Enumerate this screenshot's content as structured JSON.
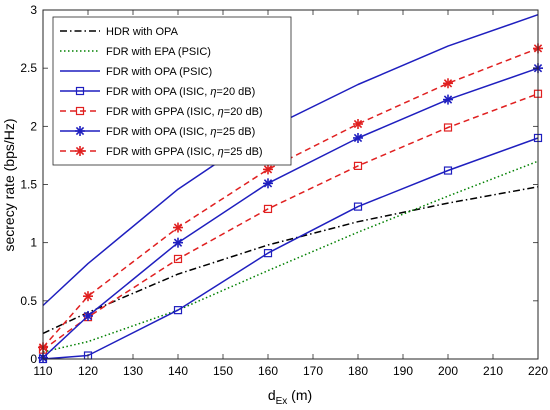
{
  "chart_data": {
    "type": "line",
    "xlabel": "d",
    "xlabel_sub": "Ex",
    "xlabel_unit": " (m)",
    "ylabel": "secrecy rate (bps/Hz)",
    "xlim": [
      110,
      220
    ],
    "ylim": [
      0,
      3
    ],
    "xticks": [
      110,
      120,
      130,
      140,
      150,
      160,
      170,
      180,
      190,
      200,
      210,
      220
    ],
    "yticks": [
      0,
      0.5,
      1,
      1.5,
      2,
      2.5,
      3
    ],
    "grid": false,
    "legend_position": "top-left",
    "x": [
      110,
      120,
      140,
      160,
      180,
      200,
      220
    ],
    "series": [
      {
        "name": "HDR with OPA",
        "legend": [
          "HDR with OPA"
        ],
        "color": "#000000",
        "dash": "dashdot",
        "marker": "none",
        "values": [
          0.22,
          0.4,
          0.73,
          0.98,
          1.18,
          1.34,
          1.48
        ]
      },
      {
        "name": "FDR with EPA (PSIC)",
        "legend": [
          "FDR with EPA (PSIC)"
        ],
        "color": "#008000",
        "dash": "dotted",
        "marker": "none",
        "values": [
          0.06,
          0.15,
          0.42,
          0.76,
          1.09,
          1.4,
          1.7
        ]
      },
      {
        "name": "FDR with OPA (PSIC)",
        "legend": [
          "FDR with OPA (PSIC)"
        ],
        "color": "#1f1fbf",
        "dash": "solid",
        "marker": "none",
        "values": [
          0.46,
          0.82,
          1.46,
          1.98,
          2.36,
          2.69,
          2.96
        ]
      },
      {
        "name": "FDR with OPA (ISIC, η=20 dB)",
        "legend": [
          "FDR with OPA (ISIC, ",
          "η",
          "=20 dB)"
        ],
        "color": "#1f1fbf",
        "dash": "solid",
        "marker": "square",
        "values": [
          0.0,
          0.03,
          0.42,
          0.91,
          1.31,
          1.62,
          1.9
        ]
      },
      {
        "name": "FDR with GPPA (ISIC, η=20 dB)",
        "legend": [
          "FDR with GPPA (ISIC, ",
          "η",
          "=20 dB)"
        ],
        "color": "#e02020",
        "dash": "dashed",
        "marker": "square",
        "values": [
          0.08,
          0.36,
          0.86,
          1.29,
          1.66,
          1.99,
          2.28
        ]
      },
      {
        "name": "FDR with OPA (ISIC, η=25 dB)",
        "legend": [
          "FDR with OPA (ISIC, ",
          "η",
          "=25 dB)"
        ],
        "color": "#1f1fbf",
        "dash": "solid",
        "marker": "star",
        "values": [
          0.01,
          0.37,
          1.0,
          1.51,
          1.9,
          2.23,
          2.5
        ]
      },
      {
        "name": "FDR with GPPA (ISIC, η=25 dB)",
        "legend": [
          "FDR with GPPA (ISIC, ",
          "η",
          "=25 dB)"
        ],
        "color": "#e02020",
        "dash": "dashed",
        "marker": "star",
        "values": [
          0.1,
          0.54,
          1.13,
          1.63,
          2.02,
          2.37,
          2.67
        ]
      }
    ]
  }
}
